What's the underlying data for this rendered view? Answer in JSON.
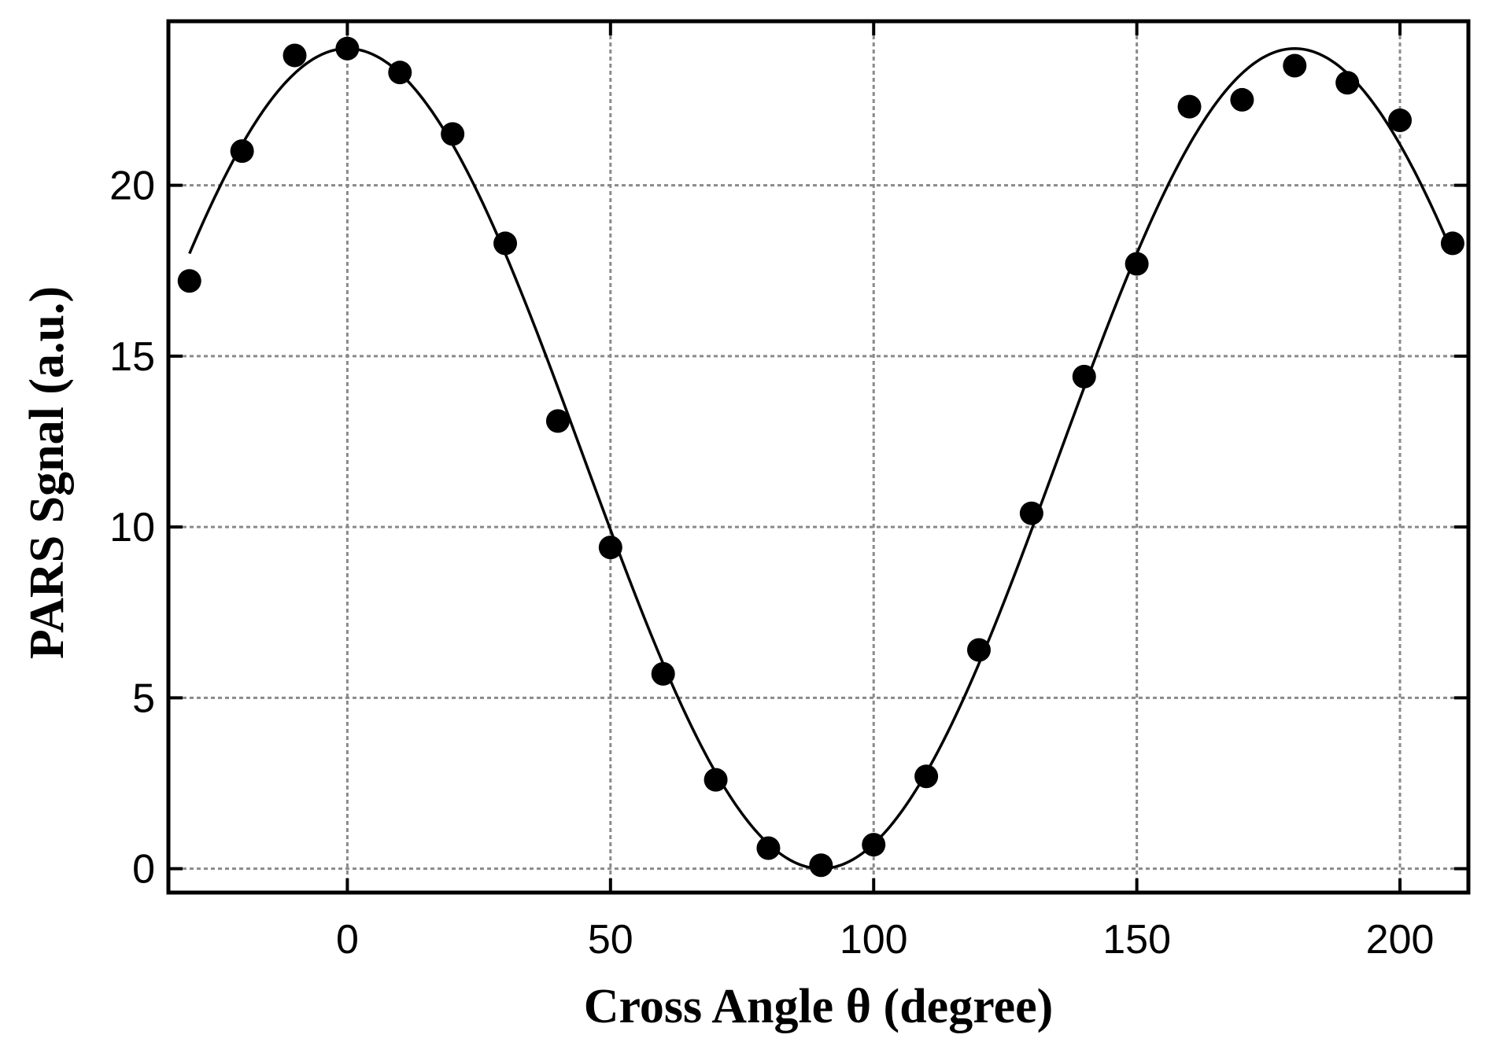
{
  "chart_data": {
    "type": "scatter",
    "title": "",
    "xlabel": "Cross Angle θ (degree)",
    "ylabel": "PARS Sgnal (a.u.)",
    "xlim": [
      -34,
      213
    ],
    "ylim": [
      -0.7,
      24.8
    ],
    "x_ticks": [
      0,
      50,
      100,
      150,
      200
    ],
    "y_ticks": [
      0,
      5,
      10,
      15,
      20
    ],
    "x_tick_labels": [
      "0",
      "50",
      "100",
      "150",
      "200"
    ],
    "y_tick_labels": [
      "0",
      "5",
      "10",
      "15",
      "20"
    ],
    "grid": true,
    "legend": false,
    "series": [
      {
        "kind": "points",
        "marker": "filled-circle",
        "color": "#000000",
        "x": [
          -30,
          -20,
          -10,
          0,
          10,
          20,
          30,
          40,
          50,
          60,
          70,
          80,
          90,
          100,
          110,
          120,
          130,
          140,
          150,
          160,
          170,
          180,
          190,
          200,
          210
        ],
        "values": [
          17.2,
          21.0,
          23.8,
          24.0,
          23.3,
          21.5,
          18.3,
          13.1,
          9.4,
          5.7,
          2.6,
          0.6,
          0.1,
          0.7,
          2.7,
          6.4,
          10.4,
          14.4,
          17.7,
          22.3,
          22.5,
          23.5,
          23.0,
          21.9,
          18.3
        ]
      },
      {
        "kind": "fit-curve",
        "color": "#000000",
        "function": "y = amplitude * cos^2(x in degrees)",
        "amplitude": 24.0,
        "x_range": [
          -30,
          210
        ]
      }
    ]
  }
}
